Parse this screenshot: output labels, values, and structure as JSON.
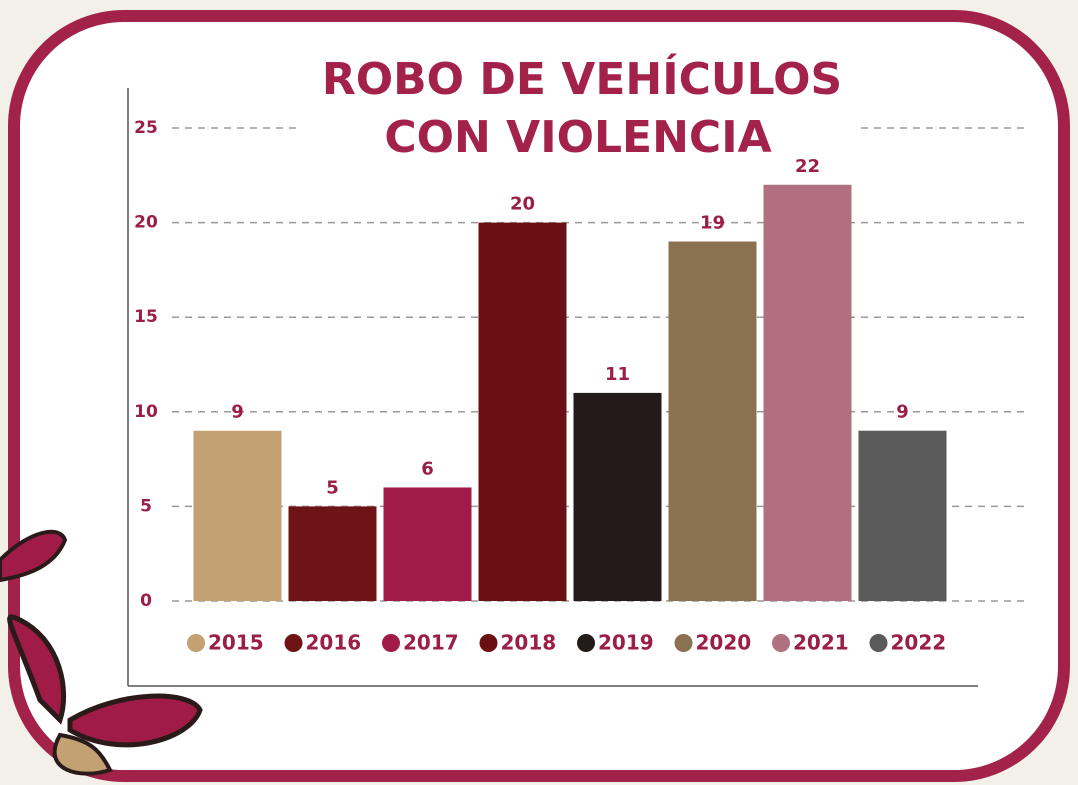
{
  "chart_data": {
    "type": "bar",
    "title": [
      "ROBO DE VEHÍCULOS",
      "CON VIOLENCIA"
    ],
    "categories": [
      "2015",
      "2016",
      "2017",
      "2018",
      "2019",
      "2020",
      "2021",
      "2022"
    ],
    "values": [
      9,
      5,
      6,
      20,
      11,
      19,
      22,
      9
    ],
    "colors": [
      "#c4a172",
      "#6e1416",
      "#a11b49",
      "#6b1012",
      "#231a1a",
      "#8a7150",
      "#b07080",
      "#5a5a5a"
    ],
    "ylim": [
      0,
      25
    ],
    "yticks": [
      0,
      5,
      10,
      15,
      20,
      25
    ],
    "grid": true,
    "legend": "bottom"
  }
}
